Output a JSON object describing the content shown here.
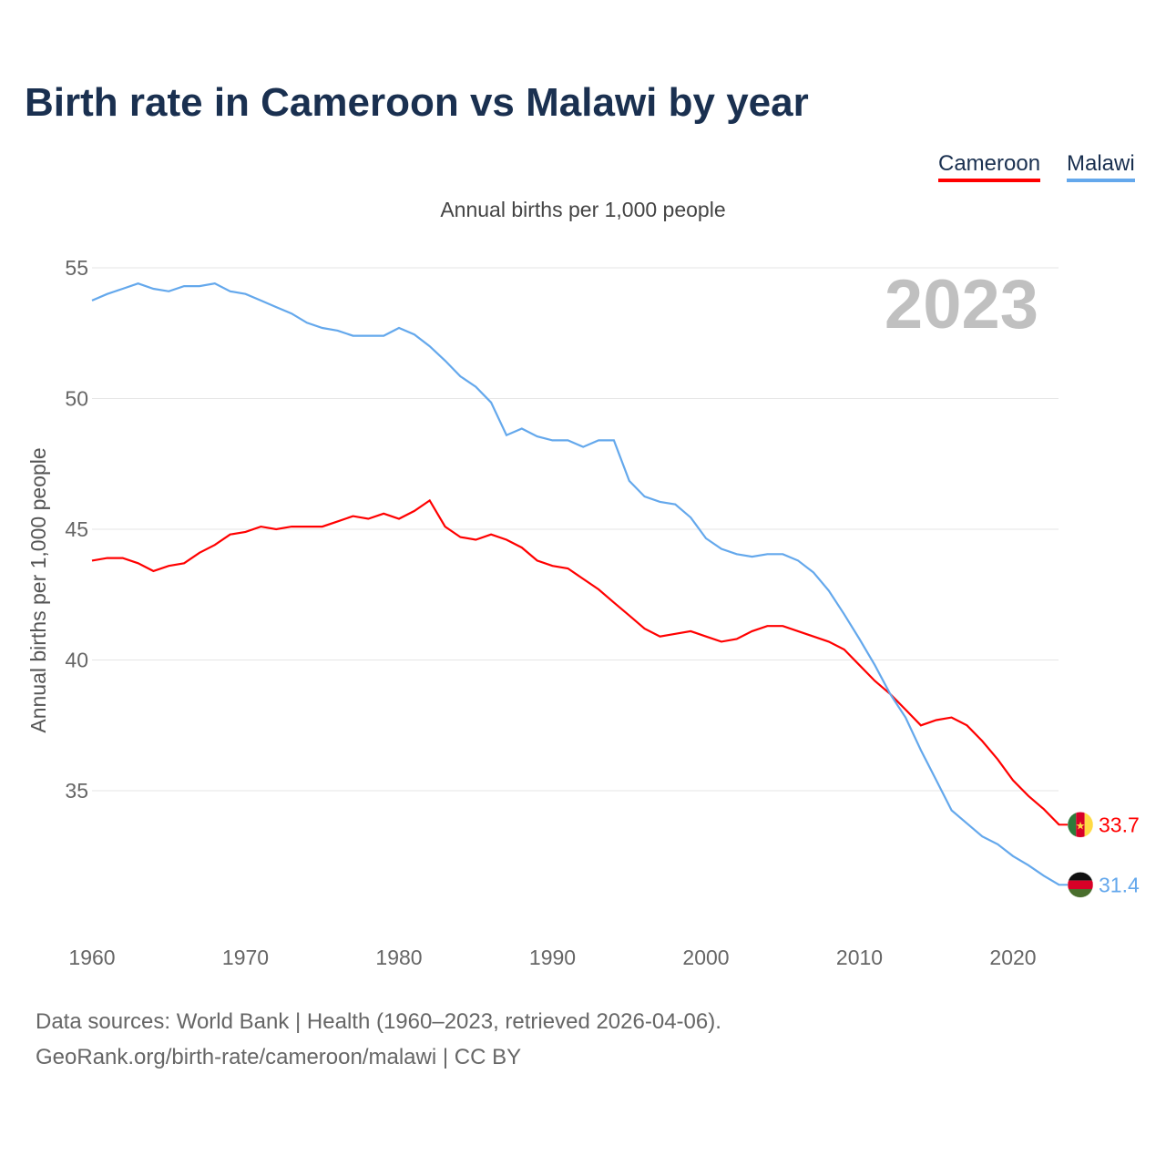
{
  "chart_data": {
    "type": "line",
    "title": "Birth rate in Cameroon vs Malawi by year",
    "subtitle": "Annual births per 1,000 people",
    "ylabel": "Annual births per 1,000 people",
    "xlabel": "",
    "year_label": "2023",
    "x": [
      1960,
      1961,
      1962,
      1963,
      1964,
      1965,
      1966,
      1967,
      1968,
      1969,
      1970,
      1971,
      1972,
      1973,
      1974,
      1975,
      1976,
      1977,
      1978,
      1979,
      1980,
      1981,
      1982,
      1983,
      1984,
      1985,
      1986,
      1987,
      1988,
      1989,
      1990,
      1991,
      1992,
      1993,
      1994,
      1995,
      1996,
      1997,
      1998,
      1999,
      2000,
      2001,
      2002,
      2003,
      2004,
      2005,
      2006,
      2007,
      2008,
      2009,
      2010,
      2011,
      2012,
      2013,
      2014,
      2015,
      2016,
      2017,
      2018,
      2019,
      2020,
      2021,
      2022,
      2023
    ],
    "xticks": [
      "1960",
      "1970",
      "1980",
      "1990",
      "2000",
      "2010",
      "2020"
    ],
    "yticks": [
      "35",
      "40",
      "45",
      "50",
      "55"
    ],
    "ylim": [
      30.5,
      55.5
    ],
    "grid": true,
    "legend_position": "top-right",
    "series": [
      {
        "name": "Cameroon",
        "color": "#ff0000",
        "end_label": "33.7",
        "values": [
          43.8,
          43.9,
          43.9,
          43.7,
          43.4,
          43.6,
          43.7,
          44.1,
          44.4,
          44.8,
          44.9,
          45.1,
          45.0,
          45.1,
          45.1,
          45.1,
          45.3,
          45.5,
          45.4,
          45.6,
          45.4,
          45.7,
          46.1,
          45.1,
          44.7,
          44.6,
          44.8,
          44.6,
          44.3,
          43.8,
          43.6,
          43.5,
          43.1,
          42.7,
          42.2,
          41.7,
          41.2,
          40.9,
          41.0,
          41.1,
          40.9,
          40.7,
          40.8,
          41.1,
          41.3,
          41.3,
          41.1,
          40.9,
          40.7,
          40.4,
          39.8,
          39.2,
          38.7,
          38.1,
          37.5,
          37.7,
          37.8,
          37.5,
          36.9,
          36.2,
          35.4,
          34.8,
          34.3,
          33.7
        ]
      },
      {
        "name": "Malawi",
        "color": "#64a8ec",
        "end_label": "31.4",
        "values": [
          53.75,
          54.0,
          54.2,
          54.4,
          54.2,
          54.1,
          54.3,
          54.3,
          54.4,
          54.1,
          54.0,
          53.75,
          53.5,
          53.25,
          52.9,
          52.7,
          52.6,
          52.4,
          52.4,
          52.4,
          52.7,
          52.45,
          52.0,
          51.45,
          50.85,
          50.45,
          49.85,
          48.6,
          48.85,
          48.55,
          48.4,
          48.4,
          48.15,
          48.4,
          48.4,
          46.85,
          46.25,
          46.05,
          45.95,
          45.45,
          44.65,
          44.25,
          44.05,
          43.95,
          44.05,
          44.05,
          43.8,
          43.35,
          42.65,
          41.75,
          40.8,
          39.8,
          38.7,
          37.8,
          36.55,
          35.4,
          34.25,
          33.75,
          33.25,
          32.95,
          32.5,
          32.15,
          31.75,
          31.4
        ]
      }
    ]
  },
  "footer": {
    "line1": "Data sources: World Bank | Health (1960–2023, retrieved 2026-04-06).",
    "line2": "GeoRank.org/birth-rate/cameroon/malawi | CC BY"
  }
}
